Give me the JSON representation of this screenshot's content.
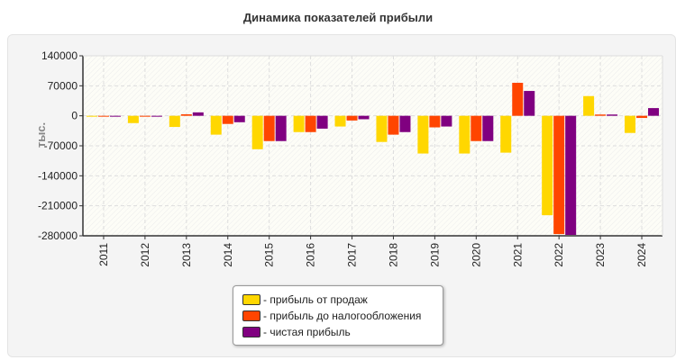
{
  "chart_data": {
    "type": "bar",
    "title": "Динамика показателей прибыли",
    "ylabel": "тыс.",
    "xlabel": "",
    "ylim": [
      -280000,
      140000
    ],
    "yticks": [
      140000,
      70000,
      0,
      -70000,
      -140000,
      -210000,
      -280000
    ],
    "grid": true,
    "legend_position": "bottom",
    "categories": [
      "2011",
      "2012",
      "2013",
      "2014",
      "2015",
      "2016",
      "2017",
      "2018",
      "2019",
      "2020",
      "2021",
      "2022",
      "2023",
      "2024"
    ],
    "series": [
      {
        "name": "- прибыль от продаж",
        "color": "#ffd700",
        "values": [
          -2000,
          -17000,
          -26000,
          -44000,
          -78000,
          -38000,
          -25000,
          -61000,
          -88000,
          -88000,
          -86000,
          -232000,
          46000,
          -40000
        ]
      },
      {
        "name": "- прибыль до налогообложения",
        "color": "#ff4500",
        "values": [
          -2000,
          -2000,
          3500,
          -19000,
          -59000,
          -38000,
          -11000,
          -44000,
          -27000,
          -59000,
          77000,
          -276000,
          3000,
          -5000
        ]
      },
      {
        "name": "- чистая прибыль",
        "color": "#800080",
        "values": [
          -1000,
          -2000,
          8000,
          -15000,
          -59000,
          -30000,
          -8000,
          -38000,
          -25000,
          -59000,
          58000,
          -278000,
          3000,
          18000
        ]
      }
    ]
  }
}
